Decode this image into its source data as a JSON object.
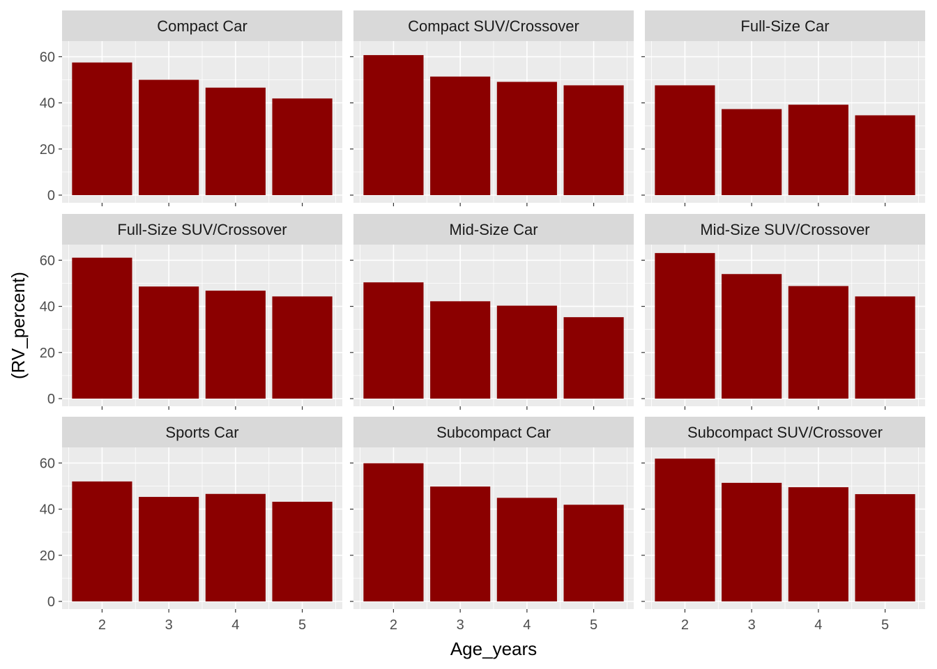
{
  "chart_data": {
    "type": "bar",
    "layout": "faceted 3x3 grid",
    "xlabel": "Age_years",
    "ylabel": "(RV_percent)",
    "categories": [
      "2",
      "3",
      "4",
      "5"
    ],
    "yticks": [
      0,
      20,
      40,
      60
    ],
    "ylim": [
      -2.6,
      71
    ],
    "grid": true,
    "bar_color": "#8B0000",
    "panel_background": "#EBEBEB",
    "strip_background": "#D9D9D9",
    "facets": [
      {
        "name": "Compact Car",
        "values": [
          57.5,
          50,
          46.6,
          41.9
        ]
      },
      {
        "name": "Compact SUV/Crossover",
        "values": [
          60.7,
          51.4,
          49.1,
          47.6
        ]
      },
      {
        "name": "Full-Size Car",
        "values": [
          47.6,
          37.3,
          39.2,
          34.6
        ]
      },
      {
        "name": "Full-Size SUV/Crossover",
        "values": [
          61.1,
          48.6,
          46.8,
          44.3
        ]
      },
      {
        "name": "Mid-Size Car",
        "values": [
          50.4,
          42.2,
          40.3,
          35.3
        ]
      },
      {
        "name": "Mid-Size SUV/Crossover",
        "values": [
          63.1,
          54,
          48.8,
          44.3
        ]
      },
      {
        "name": "Sports Car",
        "values": [
          52,
          45.3,
          46.6,
          43.2
        ]
      },
      {
        "name": "Subcompact Car",
        "values": [
          59.9,
          49.8,
          44.9,
          41.9
        ]
      },
      {
        "name": "Subcompact SUV/Crossover",
        "values": [
          61.9,
          51.4,
          49.5,
          46.5
        ]
      }
    ]
  }
}
